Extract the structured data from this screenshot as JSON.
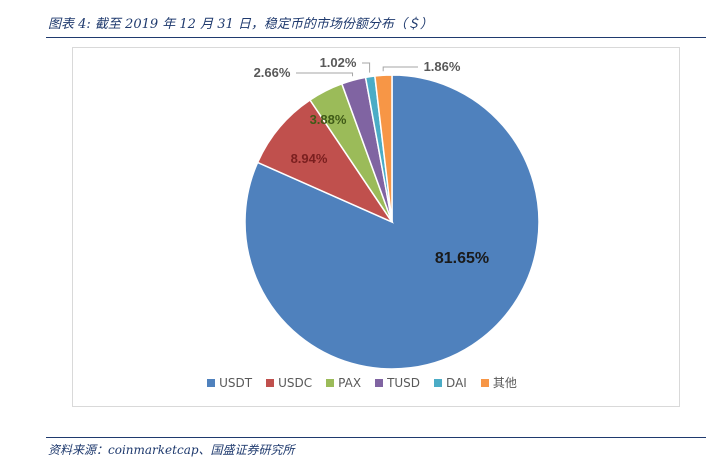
{
  "figure": {
    "title": "图表 4: 截至 2019 年 12 月 31 日，稳定币的市场份额分布（＄）",
    "source": "资料来源：coinmarketcap、国盛证券研究所"
  },
  "chart_data": {
    "type": "pie",
    "title": "",
    "legend_position": "bottom",
    "slices": [
      {
        "name": "USDT",
        "value": 81.65,
        "label": "81.65%",
        "color": "#4f81bd"
      },
      {
        "name": "USDC",
        "value": 8.94,
        "label": "8.94%",
        "color": "#c0504d"
      },
      {
        "name": "PAX",
        "value": 3.88,
        "label": "3.88%",
        "color": "#9bbb59"
      },
      {
        "name": "TUSD",
        "value": 2.66,
        "label": "2.66%",
        "color": "#8064a2"
      },
      {
        "name": "DAI",
        "value": 1.02,
        "label": "1.02%",
        "color": "#4bacc6"
      },
      {
        "name": "其他",
        "value": 1.86,
        "label": "1.86%",
        "color": "#f79646"
      }
    ]
  }
}
